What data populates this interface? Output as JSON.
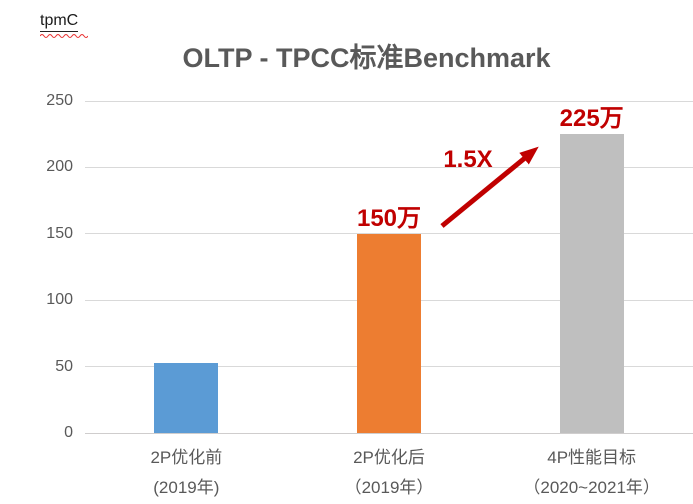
{
  "header": {
    "unit_label": "tpmC"
  },
  "chart_data": {
    "type": "bar",
    "title": "OLTP - TPCC标准Benchmark",
    "unit_label": "tpmC",
    "xlabel": "",
    "ylabel": "tpmC",
    "categories": [
      "2P优化前\n(2019年)",
      "2P优化后\n（2019年）",
      "4P性能目标\n（2020~2021年）"
    ],
    "values": [
      53,
      150,
      225
    ],
    "bar_labels": [
      "",
      "150万",
      "225万"
    ],
    "bar_colors": [
      "#5B9BD5",
      "#ED7D31",
      "#BFBFBF"
    ],
    "bar_ids": [
      "2p-before-optimization",
      "2p-after-optimization",
      "4p-performance-target"
    ],
    "yticks": [
      0,
      50,
      100,
      150,
      200,
      250
    ],
    "ylim": [
      0,
      250
    ],
    "grid": true,
    "legend": "none",
    "axis_text_color": "#595959",
    "gridline_color": "#D9D9D9",
    "value_label_color": "#C00000",
    "annotations": [
      {
        "text": "1.5X",
        "color": "#C00000",
        "shape": "arrow-up-right",
        "from": "2p-after-optimization",
        "to": "4p-performance-target"
      }
    ]
  }
}
